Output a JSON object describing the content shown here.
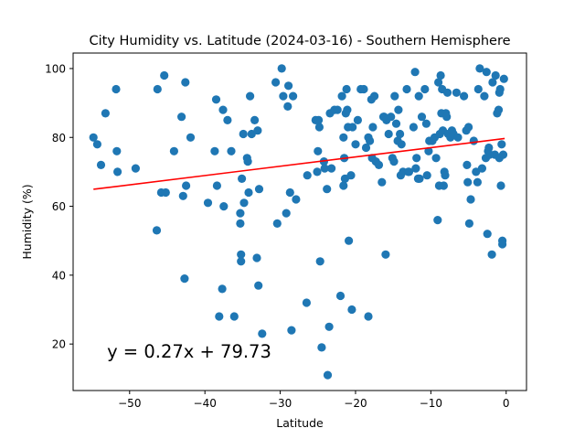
{
  "chart_data": {
    "type": "scatter",
    "title": "City Humidity vs. Latitude (2024-03-16) - Southern Hemisphere",
    "xlabel": "Latitude",
    "ylabel": "Humidity (%)",
    "xlim": [
      -57.5,
      2.7
    ],
    "ylim": [
      6.5,
      104.5
    ],
    "xticks": [
      -50,
      -40,
      -30,
      -20,
      -10,
      0
    ],
    "yticks": [
      20,
      40,
      60,
      80,
      100
    ],
    "xtick_labels": [
      "−50",
      "−40",
      "−30",
      "−20",
      "−10",
      "0"
    ],
    "ytick_labels": [
      "20",
      "40",
      "60",
      "80",
      "100"
    ],
    "grid": false,
    "point_color": "#1f77b4",
    "regression": {
      "slope": 0.27,
      "intercept": 79.73,
      "x_range": [
        -54.8,
        -0.2
      ],
      "color": "#ff0000",
      "equation_label": "y = 0.27x + 79.73",
      "label_position": [
        -53.0,
        16.0
      ]
    },
    "points": [
      [
        -54.8,
        80
      ],
      [
        -54.3,
        78
      ],
      [
        -53.8,
        72
      ],
      [
        -53.2,
        87
      ],
      [
        -51.8,
        94
      ],
      [
        -51.7,
        76
      ],
      [
        -51.6,
        70
      ],
      [
        -49.2,
        71
      ],
      [
        -46.4,
        53
      ],
      [
        -46.3,
        94
      ],
      [
        -45.8,
        64
      ],
      [
        -45.4,
        98
      ],
      [
        -45.2,
        64
      ],
      [
        -44.1,
        76
      ],
      [
        -43.1,
        86
      ],
      [
        -42.9,
        63
      ],
      [
        -42.7,
        39
      ],
      [
        -42.6,
        96
      ],
      [
        -42.5,
        66
      ],
      [
        -41.9,
        80
      ],
      [
        -39.6,
        61
      ],
      [
        -38.7,
        76
      ],
      [
        -38.5,
        91
      ],
      [
        -38.4,
        66
      ],
      [
        -38.1,
        28
      ],
      [
        -37.7,
        36
      ],
      [
        -37.6,
        88
      ],
      [
        -37.5,
        60
      ],
      [
        -37.0,
        85
      ],
      [
        -36.5,
        76
      ],
      [
        -36.1,
        28
      ],
      [
        -35.3,
        58
      ],
      [
        -35.3,
        55
      ],
      [
        -35.2,
        46
      ],
      [
        -35.2,
        44
      ],
      [
        -35.1,
        68
      ],
      [
        -34.9,
        81
      ],
      [
        -34.8,
        61
      ],
      [
        -34.4,
        74
      ],
      [
        -34.3,
        73
      ],
      [
        -34.2,
        64
      ],
      [
        -34.0,
        92
      ],
      [
        -33.8,
        81
      ],
      [
        -33.4,
        85
      ],
      [
        -33.1,
        45
      ],
      [
        -33.0,
        82
      ],
      [
        -32.9,
        37
      ],
      [
        -32.8,
        65
      ],
      [
        -32.4,
        23
      ],
      [
        -30.6,
        96
      ],
      [
        -30.4,
        55
      ],
      [
        -29.8,
        100
      ],
      [
        -29.6,
        92
      ],
      [
        -29.2,
        58
      ],
      [
        -29.0,
        89
      ],
      [
        -28.9,
        95
      ],
      [
        -28.7,
        64
      ],
      [
        -28.5,
        24
      ],
      [
        -28.3,
        92
      ],
      [
        -27.9,
        62
      ],
      [
        -26.5,
        32
      ],
      [
        -26.4,
        69
      ],
      [
        -25.3,
        85
      ],
      [
        -25.1,
        70
      ],
      [
        -25.0,
        76
      ],
      [
        -24.9,
        85
      ],
      [
        -24.8,
        83
      ],
      [
        -24.7,
        44
      ],
      [
        -24.5,
        19
      ],
      [
        -24.2,
        73
      ],
      [
        -24.1,
        71
      ],
      [
        -23.8,
        65
      ],
      [
        -23.7,
        11
      ],
      [
        -23.5,
        25
      ],
      [
        -23.4,
        87
      ],
      [
        -23.2,
        71
      ],
      [
        -22.8,
        88
      ],
      [
        -22.4,
        88
      ],
      [
        -22.0,
        34
      ],
      [
        -21.8,
        92
      ],
      [
        -21.6,
        80
      ],
      [
        -21.6,
        66
      ],
      [
        -21.5,
        74
      ],
      [
        -21.4,
        68
      ],
      [
        -21.3,
        87
      ],
      [
        -21.2,
        94
      ],
      [
        -21.1,
        88
      ],
      [
        -21.0,
        83
      ],
      [
        -20.9,
        50
      ],
      [
        -20.6,
        69
      ],
      [
        -20.5,
        30
      ],
      [
        -20.4,
        83
      ],
      [
        -20.0,
        78
      ],
      [
        -19.7,
        85
      ],
      [
        -19.3,
        94
      ],
      [
        -18.9,
        94
      ],
      [
        -18.6,
        77
      ],
      [
        -18.3,
        28
      ],
      [
        -18.3,
        80
      ],
      [
        -18.1,
        79
      ],
      [
        -17.9,
        91
      ],
      [
        -17.8,
        74
      ],
      [
        -17.7,
        83
      ],
      [
        -17.5,
        92
      ],
      [
        -17.3,
        73
      ],
      [
        -16.9,
        72
      ],
      [
        -16.5,
        67
      ],
      [
        -16.3,
        86
      ],
      [
        -16.2,
        86
      ],
      [
        -16.0,
        46
      ],
      [
        -15.9,
        85
      ],
      [
        -15.6,
        81
      ],
      [
        -15.3,
        86
      ],
      [
        -15.1,
        74
      ],
      [
        -14.9,
        73
      ],
      [
        -14.8,
        92
      ],
      [
        -14.6,
        84
      ],
      [
        -14.4,
        79
      ],
      [
        -14.3,
        88
      ],
      [
        -14.1,
        81
      ],
      [
        -14.0,
        69
      ],
      [
        -13.9,
        78
      ],
      [
        -13.7,
        70
      ],
      [
        -13.2,
        94
      ],
      [
        -13.0,
        70
      ],
      [
        -12.9,
        70
      ],
      [
        -12.3,
        83
      ],
      [
        -12.1,
        99
      ],
      [
        -12.0,
        71
      ],
      [
        -11.9,
        74
      ],
      [
        -11.7,
        68
      ],
      [
        -11.6,
        92
      ],
      [
        -11.5,
        68
      ],
      [
        -11.2,
        86
      ],
      [
        -10.8,
        94
      ],
      [
        -10.6,
        84
      ],
      [
        -10.5,
        69
      ],
      [
        -10.3,
        76
      ],
      [
        -10.2,
        79
      ],
      [
        -9.8,
        79
      ],
      [
        -9.5,
        80
      ],
      [
        -9.3,
        74
      ],
      [
        -9.1,
        56
      ],
      [
        -9.0,
        96
      ],
      [
        -8.9,
        66
      ],
      [
        -8.8,
        81
      ],
      [
        -8.7,
        98
      ],
      [
        -8.6,
        87
      ],
      [
        -8.5,
        94
      ],
      [
        -8.4,
        82
      ],
      [
        -8.3,
        66
      ],
      [
        -8.2,
        70
      ],
      [
        -8.1,
        69
      ],
      [
        -8.0,
        87
      ],
      [
        -7.9,
        86
      ],
      [
        -7.8,
        93
      ],
      [
        -7.7,
        81
      ],
      [
        -7.4,
        80
      ],
      [
        -7.2,
        82
      ],
      [
        -7.0,
        81
      ],
      [
        -6.6,
        93
      ],
      [
        -6.4,
        80
      ],
      [
        -5.6,
        92
      ],
      [
        -5.3,
        82
      ],
      [
        -5.2,
        72
      ],
      [
        -5.1,
        67
      ],
      [
        -5.0,
        83
      ],
      [
        -4.9,
        55
      ],
      [
        -4.7,
        62
      ],
      [
        -4.3,
        79
      ],
      [
        -4.0,
        70
      ],
      [
        -3.8,
        67
      ],
      [
        -3.7,
        94
      ],
      [
        -3.5,
        100
      ],
      [
        -3.2,
        71
      ],
      [
        -2.9,
        92
      ],
      [
        -2.7,
        74
      ],
      [
        -2.6,
        99
      ],
      [
        -2.5,
        52
      ],
      [
        -2.4,
        76
      ],
      [
        -2.3,
        77
      ],
      [
        -2.2,
        75
      ],
      [
        -1.9,
        46
      ],
      [
        -1.8,
        96
      ],
      [
        -1.5,
        75
      ],
      [
        -1.4,
        98
      ],
      [
        -1.2,
        87
      ],
      [
        -1.0,
        88
      ],
      [
        -0.9,
        74
      ],
      [
        -0.9,
        93
      ],
      [
        -0.8,
        94
      ],
      [
        -0.7,
        66
      ],
      [
        -0.6,
        78
      ],
      [
        -0.5,
        50
      ],
      [
        -0.5,
        49
      ],
      [
        -0.4,
        75
      ],
      [
        -0.3,
        97
      ]
    ]
  }
}
